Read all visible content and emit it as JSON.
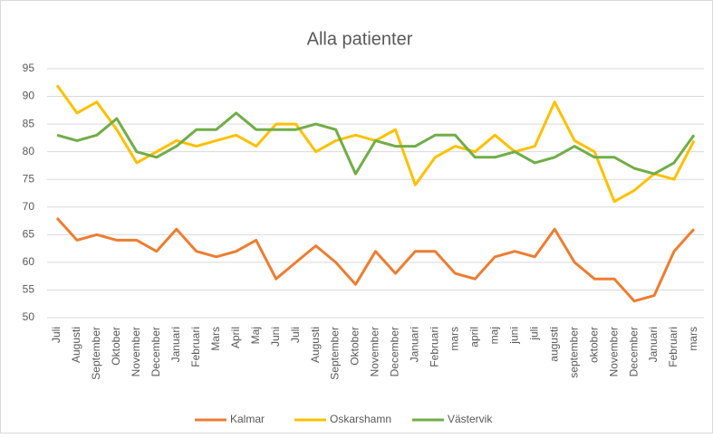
{
  "chart_data": {
    "type": "line",
    "title": "Alla patienter",
    "categories": [
      "Juli",
      "Augusti",
      "September",
      "Oktober",
      "November",
      "December",
      "Januari",
      "Februari",
      "Mars",
      "April",
      "Maj",
      "Juni",
      "Juli",
      "Augusti",
      "September",
      "Oktober",
      "November",
      "December",
      "Januari",
      "Februari",
      "mars",
      "april",
      "maj",
      "juni",
      "juli",
      "augusti",
      "september",
      "oktober",
      "November",
      "December",
      "Januari",
      "Februari",
      "mars"
    ],
    "series": [
      {
        "name": "Kalmar",
        "color": "#ed7d31",
        "values": [
          68,
          64,
          65,
          64,
          64,
          62,
          66,
          62,
          61,
          62,
          64,
          57,
          60,
          63,
          60,
          56,
          62,
          58,
          62,
          62,
          58,
          57,
          61,
          62,
          61,
          66,
          60,
          57,
          57,
          53,
          54,
          62,
          66
        ]
      },
      {
        "name": "Oskarshamn",
        "color": "#ffc000",
        "values": [
          92,
          87,
          89,
          84,
          78,
          80,
          82,
          81,
          82,
          83,
          81,
          85,
          85,
          80,
          82,
          83,
          82,
          84,
          74,
          79,
          81,
          80,
          83,
          80,
          81,
          89,
          82,
          80,
          71,
          73,
          76,
          75,
          82
        ]
      },
      {
        "name": "Västervik",
        "color": "#70ad47",
        "values": [
          83,
          82,
          83,
          86,
          80,
          79,
          81,
          84,
          84,
          87,
          84,
          84,
          84,
          85,
          84,
          76,
          82,
          81,
          81,
          83,
          83,
          79,
          79,
          80,
          78,
          79,
          81,
          79,
          79,
          77,
          76,
          78,
          83
        ]
      }
    ],
    "ylim": [
      50,
      95
    ],
    "yticks": [
      50,
      55,
      60,
      65,
      70,
      75,
      80,
      85,
      90,
      95
    ],
    "grid": true,
    "legend": "bottom"
  }
}
